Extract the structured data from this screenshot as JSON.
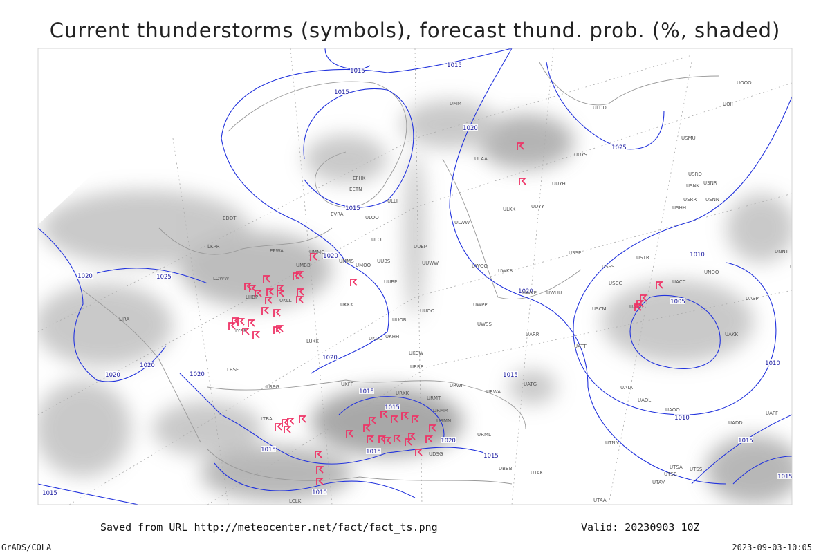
{
  "title": "Current thunderstorms (symbols), forecast thund. prob. (%, shaded)",
  "footer": {
    "source": "Saved from URL http://meteocenter.net/fact/fact_ts.png",
    "valid": "Valid: 20230903 10Z",
    "credit": "GrADS/COLA",
    "timestamp": "2023-09-03-10:05"
  },
  "isobars": [
    "1015",
    "1015",
    "1015",
    "1020",
    "1025",
    "1015",
    "1020",
    "1020",
    "1025",
    "1020",
    "1010",
    "1005",
    "1020",
    "1020",
    "1020",
    "1020",
    "1015",
    "1010",
    "1015",
    "1015",
    "1010",
    "1020",
    "1015",
    "1015",
    "1015",
    "1015",
    "1015",
    "1015",
    "1010"
  ],
  "stations": [
    "UMM",
    "ULDD",
    "UOOO",
    "UOII",
    "USMU",
    "UUYS",
    "ULAA",
    "UUYH",
    "USRO",
    "USNR",
    "USNK",
    "USRR",
    "USNN",
    "ULKK",
    "UUYY",
    "USHH",
    "EFHK",
    "EETN",
    "ULLI",
    "EVRA",
    "ULOO",
    "EDDT",
    "ULOL",
    "UUEM",
    "EPWA",
    "UMMG",
    "UMMS",
    "UMOO",
    "ULWW",
    "UUWW",
    "USSP",
    "USTR",
    "UNNT",
    "UNBB",
    "USSS",
    "UWKS",
    "UWOO",
    "UNOO",
    "UMBB",
    "UUBS",
    "LKPR",
    "LOWW",
    "USCC",
    "UACC",
    "UWKE",
    "UWUU",
    "UUBP",
    "UKLL",
    "UASP",
    "LHBP",
    "UKKK",
    "UWPP",
    "UUOO",
    "USCM",
    "UAUU",
    "LIRA",
    "UUOB",
    "UWSS",
    "LYBE",
    "UARR",
    "UAKK",
    "UKHH",
    "UKDD",
    "LUKK",
    "UATT",
    "UKCW",
    "URRR",
    "LBSF",
    "UKFF",
    "UATG",
    "URWI",
    "LBBG",
    "URKK",
    "URWA",
    "UATA",
    "URMT",
    "UAOL",
    "URMM",
    "UAOO",
    "LTBA",
    "URMN",
    "UADD",
    "UAFF",
    "URML",
    "UTNN",
    "UDSG",
    "UTSA",
    "UTSB",
    "UTSS",
    "UBBB",
    "UTAK",
    "UTAV",
    "UTAA",
    "LCLK"
  ]
}
